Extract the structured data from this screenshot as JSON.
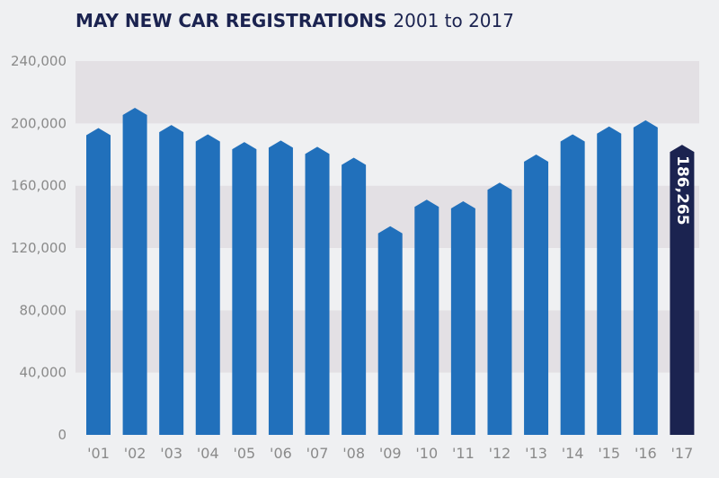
{
  "header": {
    "title_main": "MAY NEW CAR REGISTRATIONS",
    "title_sub": "2001 to 2017"
  },
  "chart_data": {
    "type": "bar",
    "title": "MAY NEW CAR REGISTRATIONS 2001 to 2017",
    "xlabel": "",
    "ylabel": "",
    "categories": [
      "'01",
      "'02",
      "'03",
      "'04",
      "'05",
      "'06",
      "'07",
      "'08",
      "'09",
      "'10",
      "'11",
      "'12",
      "'13",
      "'14",
      "'15",
      "'16",
      "'17"
    ],
    "values": [
      197000,
      210000,
      199000,
      193000,
      188000,
      189000,
      185000,
      178000,
      134000,
      151000,
      150000,
      162000,
      180000,
      193000,
      198000,
      202000,
      186265
    ],
    "ylim": [
      0,
      240000
    ],
    "yticks": [
      0,
      40000,
      80000,
      120000,
      160000,
      200000,
      240000
    ],
    "ytick_labels": [
      "0",
      "40,000",
      "80,000",
      "120,000",
      "160,000",
      "200,000",
      "240,000"
    ],
    "grid": "alternating horizontal bands",
    "highlight_index": 16,
    "data_labels": [
      {
        "index": 16,
        "text": "186,265"
      }
    ],
    "colors": {
      "bar": "#2170bb",
      "highlight": "#1b2350",
      "band": "#e3e0e4",
      "background": "#eff0f2",
      "title": "#1b2350",
      "tick_label": "#8a8a8a"
    }
  }
}
